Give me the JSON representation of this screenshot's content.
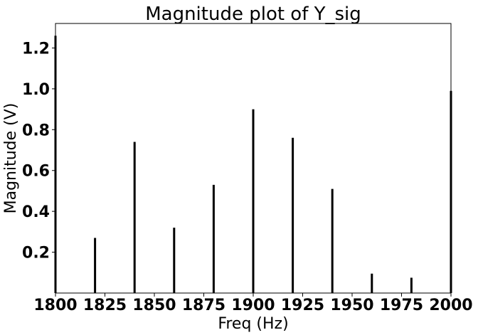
{
  "chart_data": {
    "type": "bar",
    "title": "Magnitude plot of Y_sig",
    "xlabel": "Freq (Hz)",
    "ylabel": "Magnitude (V)",
    "xlim": [
      1800,
      2000
    ],
    "ylim": [
      0,
      1.32
    ],
    "xticks": [
      "1800",
      "1825",
      "1850",
      "1875",
      "1900",
      "1925",
      "1950",
      "1975",
      "2000"
    ],
    "yticks": [
      "0.2",
      "0.4",
      "0.6",
      "0.8",
      "1.0",
      "1.2"
    ],
    "x": [
      1800,
      1820,
      1840,
      1860,
      1880,
      1900,
      1920,
      1940,
      1960,
      1980,
      2000
    ],
    "values": [
      1.26,
      0.27,
      0.74,
      0.32,
      0.53,
      0.9,
      0.76,
      0.51,
      0.095,
      0.075,
      0.99
    ],
    "grid": false,
    "style": {
      "bar_color": "#000000",
      "axis_color": "#000000"
    }
  }
}
